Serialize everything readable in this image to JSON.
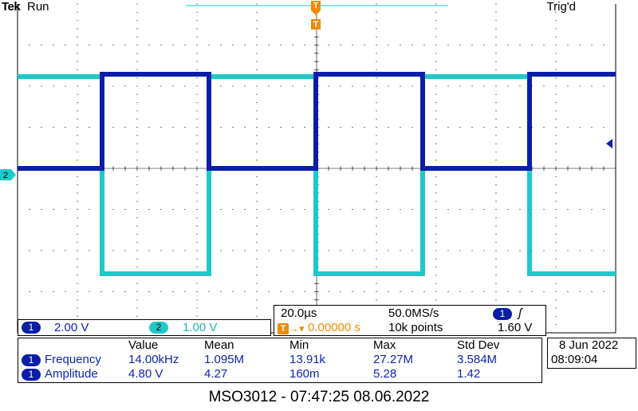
{
  "header": {
    "brand": "Tek",
    "run_state": "Run",
    "trigger_state": "Trig'd"
  },
  "markers": {
    "channel2_marker": "2",
    "trigger_marker": "T"
  },
  "channels": [
    {
      "badge": "1",
      "scale": "2.00 V",
      "color": "#0a1ea8"
    },
    {
      "badge": "2",
      "scale": "1.00 V",
      "color": "#1fc9c9"
    }
  ],
  "timebase": {
    "scale": "20.0µs",
    "sample_rate": "50.0MS/s",
    "trigger_position": "0.00000 s",
    "record_length": "10k points",
    "trigger_channel": "1",
    "trigger_level": "1.60 V",
    "trigger_slope_icon": "rising-edge-icon"
  },
  "measurements": {
    "headers": [
      "Value",
      "Mean",
      "Min",
      "Max",
      "Std Dev"
    ],
    "rows": [
      {
        "channel": "1",
        "name": "Frequency",
        "value": "14.00kHz",
        "mean": "1.095M",
        "min": "13.91k",
        "max": "27.27M",
        "std": "3.584M"
      },
      {
        "channel": "1",
        "name": "Amplitude",
        "value": "4.80 V",
        "mean": "4.27",
        "min": "160m",
        "max": "5.28",
        "std": "1.42"
      }
    ]
  },
  "clock": {
    "date": "8 Jun 2022",
    "time": "08:09:04"
  },
  "footer": "MSO3012 - 07:47:25   08.06.2022",
  "colors": {
    "ch1": "#0a1ea8",
    "ch2": "#1fc9c9",
    "trigger": "#f08a00",
    "grid": "#000000"
  }
}
